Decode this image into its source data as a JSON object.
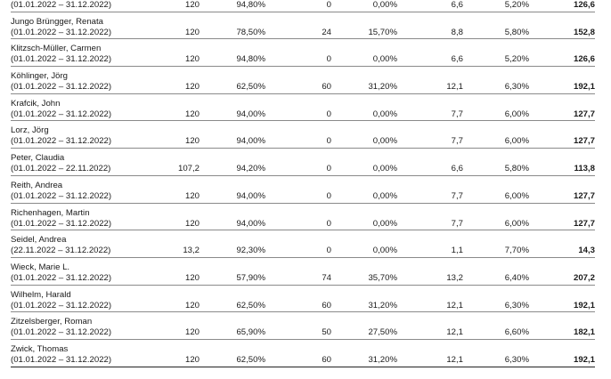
{
  "rows": [
    {
      "name": "",
      "period": "(01.01.2022 – 31.12.2022)",
      "v1": "120",
      "v2": "94,80%",
      "v3": "0",
      "v4": "0,00%",
      "v5": "6,6",
      "v6": "5,20%",
      "total": "126,6"
    },
    {
      "name": "Jungo Brüngger, Renata",
      "period": "(01.01.2022 – 31.12.2022)",
      "v1": "120",
      "v2": "78,50%",
      "v3": "24",
      "v4": "15,70%",
      "v5": "8,8",
      "v6": "5,80%",
      "total": "152,8"
    },
    {
      "name": "Klitzsch-Müller, Carmen",
      "period": "(01.01.2022 – 31.12.2022)",
      "v1": "120",
      "v2": "94,80%",
      "v3": "0",
      "v4": "0,00%",
      "v5": "6,6",
      "v6": "5,20%",
      "total": "126,6"
    },
    {
      "name": "Köhlinger, Jörg",
      "period": "(01.01.2022 – 31.12.2022)",
      "v1": "120",
      "v2": "62,50%",
      "v3": "60",
      "v4": "31,20%",
      "v5": "12,1",
      "v6": "6,30%",
      "total": "192,1"
    },
    {
      "name": "Krafcik, John",
      "period": "(01.01.2022 – 31.12.2022)",
      "v1": "120",
      "v2": "94,00%",
      "v3": "0",
      "v4": "0,00%",
      "v5": "7,7",
      "v6": "6,00%",
      "total": "127,7"
    },
    {
      "name": "Lorz, Jörg",
      "period": "(01.01.2022 – 31.12.2022)",
      "v1": "120",
      "v2": "94,00%",
      "v3": "0",
      "v4": "0,00%",
      "v5": "7,7",
      "v6": "6,00%",
      "total": "127,7"
    },
    {
      "name": "Peter, Claudia",
      "period": "(01.01.2022 – 22.11.2022)",
      "v1": "107,2",
      "v2": "94,20%",
      "v3": "0",
      "v4": "0,00%",
      "v5": "6,6",
      "v6": "5,80%",
      "total": "113,8"
    },
    {
      "name": "Reith, Andrea",
      "period": "(01.01.2022 – 31.12.2022)",
      "v1": "120",
      "v2": "94,00%",
      "v3": "0",
      "v4": "0,00%",
      "v5": "7,7",
      "v6": "6,00%",
      "total": "127,7"
    },
    {
      "name": "Richenhagen, Martin",
      "period": "(01.01.2022 – 31.12.2022)",
      "v1": "120",
      "v2": "94,00%",
      "v3": "0",
      "v4": "0,00%",
      "v5": "7,7",
      "v6": "6,00%",
      "total": "127,7"
    },
    {
      "name": "Seidel, Andrea",
      "period": "(22.11.2022 – 31.12.2022)",
      "v1": "13,2",
      "v2": "92,30%",
      "v3": "0",
      "v4": "0,00%",
      "v5": "1,1",
      "v6": "7,70%",
      "total": "14,3"
    },
    {
      "name": "Wieck, Marie L.",
      "period": "(01.01.2022 – 31.12.2022)",
      "v1": "120",
      "v2": "57,90%",
      "v3": "74",
      "v4": "35,70%",
      "v5": "13,2",
      "v6": "6,40%",
      "total": "207,2"
    },
    {
      "name": "Wilhelm, Harald",
      "period": "(01.01.2022 – 31.12.2022)",
      "v1": "120",
      "v2": "62,50%",
      "v3": "60",
      "v4": "31,20%",
      "v5": "12,1",
      "v6": "6,30%",
      "total": "192,1"
    },
    {
      "name": "Zitzelsberger, Roman",
      "period": "(01.01.2022 – 31.12.2022)",
      "v1": "120",
      "v2": "65,90%",
      "v3": "50",
      "v4": "27,50%",
      "v5": "12,1",
      "v6": "6,60%",
      "total": "182,1"
    },
    {
      "name": "Zwick, Thomas",
      "period": "(01.01.2022 – 31.12.2022)",
      "v1": "120",
      "v2": "62,50%",
      "v3": "60",
      "v4": "31,20%",
      "v5": "12,1",
      "v6": "6,30%",
      "total": "192,1"
    }
  ]
}
